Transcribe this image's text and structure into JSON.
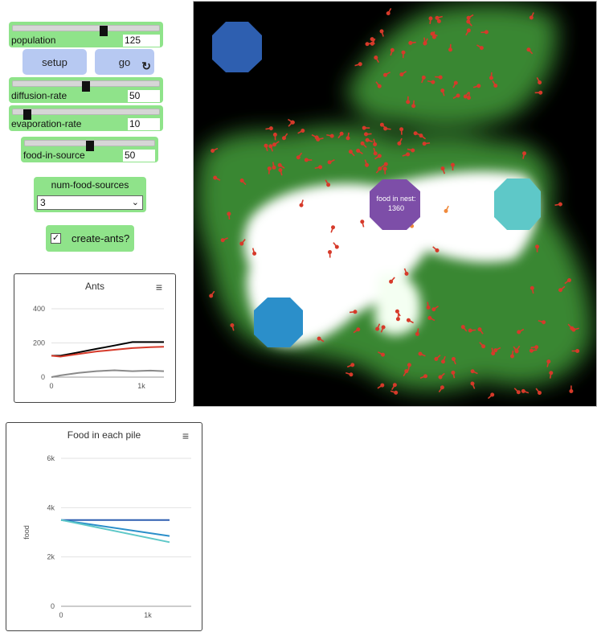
{
  "sliders": {
    "population": {
      "label": "population",
      "value": "125",
      "fraction": 0.62
    },
    "diffusion_rate": {
      "label": "diffusion-rate",
      "value": "50",
      "fraction": 0.5
    },
    "evaporation_rate": {
      "label": "evaporation-rate",
      "value": "10",
      "fraction": 0.1
    },
    "food_in_source": {
      "label": "food-in-source",
      "value": "50",
      "fraction": 0.5
    }
  },
  "buttons": {
    "setup": "setup",
    "go": "go"
  },
  "chooser": {
    "label": "num-food-sources",
    "value": "3"
  },
  "switch": {
    "label": "create-ants?",
    "checked": true
  },
  "view": {
    "nest_label_line1": "food in nest:",
    "nest_label_line2": "1360",
    "colors": {
      "nest": "#7d4ea8",
      "food_1": "#2e5fb0",
      "food_2": "#2b8fca",
      "food_3": "#5ec8c8",
      "ant": "#d63a2a",
      "ant_carrying": "#f08a3c",
      "pheromone": "#4caa3e"
    }
  },
  "ants_plot": {
    "title": "Ants",
    "chart_data": {
      "type": "line",
      "title": "Ants",
      "xlabel": "",
      "ylabel": "",
      "xlim": [
        0,
        1250
      ],
      "ylim": [
        0,
        400
      ],
      "y_ticks": [
        "0",
        "200",
        "400"
      ],
      "x_ticks": [
        "0",
        "1k"
      ],
      "series": [
        {
          "color": "#000000",
          "x": [
            0,
            100,
            300,
            500,
            700,
            900,
            1000,
            1250
          ],
          "y": [
            125,
            125,
            145,
            165,
            185,
            205,
            205,
            205
          ]
        },
        {
          "color": "#d63a2a",
          "x": [
            0,
            100,
            300,
            500,
            700,
            900,
            1100,
            1250
          ],
          "y": [
            125,
            120,
            135,
            150,
            160,
            170,
            175,
            178
          ]
        },
        {
          "color": "#8a8a8a",
          "x": [
            0,
            100,
            300,
            500,
            700,
            900,
            1100,
            1250
          ],
          "y": [
            0,
            10,
            25,
            35,
            40,
            35,
            38,
            35
          ]
        }
      ]
    }
  },
  "food_plot": {
    "title": "Food in each pile",
    "chart_data": {
      "type": "line",
      "title": "Food in each pile",
      "xlabel": "",
      "ylabel": "food",
      "xlim": [
        0,
        1500
      ],
      "ylim": [
        0,
        6000
      ],
      "y_ticks": [
        "0",
        "2k",
        "4k",
        "6k"
      ],
      "x_ticks": [
        "0",
        "1k"
      ],
      "series": [
        {
          "color": "#2e5fb0",
          "x": [
            0,
            1250
          ],
          "y": [
            3500,
            3500
          ]
        },
        {
          "color": "#2b8fca",
          "x": [
            0,
            1250
          ],
          "y": [
            3500,
            2850
          ]
        },
        {
          "color": "#5ec8c8",
          "x": [
            0,
            1250
          ],
          "y": [
            3500,
            2600
          ]
        }
      ]
    }
  }
}
